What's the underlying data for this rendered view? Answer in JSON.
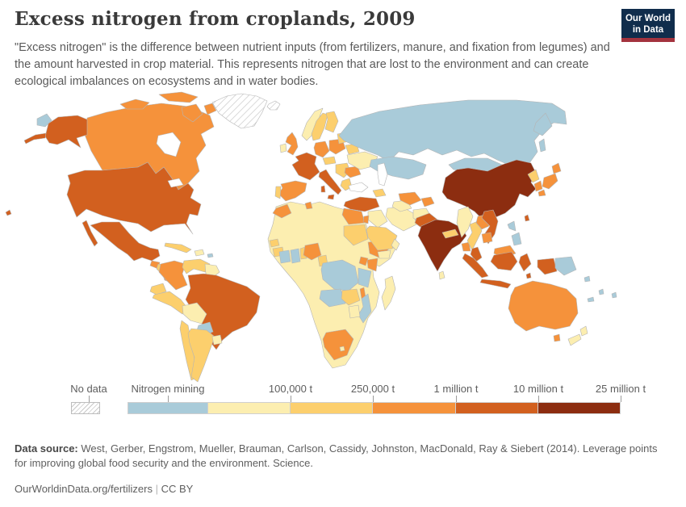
{
  "header": {
    "title": "Excess nitrogen from croplands, 2009",
    "subtitle": "\"Excess nitrogen\" is the difference between nutrient inputs (from fertilizers, manure, and fixation from legumes) and the amount harvested in crop material. This represents nitrogen that are lost to the environment and can create ecological imbalances on ecosystems and in water bodies.",
    "logo": {
      "line1": "Our World",
      "line2": "in Data",
      "bg": "#102d4c",
      "accent": "#a3333e"
    }
  },
  "legend": {
    "no_data_label": "No data",
    "mining_label": "Nitrogen mining",
    "tick_labels": [
      "100,000 t",
      "250,000 t",
      "1 million t",
      "10 million t",
      "25 million t"
    ]
  },
  "footer": {
    "source_label": "Data source:",
    "source_text": " West, Gerber, Engstrom, Mueller, Brauman, Carlson, Cassidy, Johnston, MacDonald, Ray & Siebert (2014). Leverage points for improving global food security and the environment. Science.",
    "link_text": "OurWorldinData.org/fertilizers",
    "separator": "|",
    "license_text": "CC BY"
  },
  "chart_data": {
    "type": "choropleth-map",
    "title": "Excess nitrogen from croplands, 2009",
    "unit": "tonnes of excess nitrogen",
    "ocean_color": "#ffffff",
    "border_color": "#b5b5b5",
    "scale_bands": [
      {
        "key": "mining",
        "label": "Nitrogen mining",
        "color": "#a9cbd9"
      },
      {
        "key": "b1",
        "label": "up to 100,000 t",
        "color": "#fceeb0"
      },
      {
        "key": "b2",
        "label": "100,000 t – 250,000 t",
        "color": "#fccf6d"
      },
      {
        "key": "b3",
        "label": "250,000 t – 1 million t",
        "color": "#f5923b"
      },
      {
        "key": "b4",
        "label": "1 million t – 10 million t",
        "color": "#d2601f"
      },
      {
        "key": "b5",
        "label": "10 million t – 25 million t",
        "color": "#8c2d10"
      },
      {
        "key": "nodata",
        "label": "No data",
        "color": "hatch"
      }
    ],
    "countries": [
      {
        "id": "greenland",
        "name": "Greenland",
        "band": "nodata"
      },
      {
        "id": "iceland",
        "name": "Iceland",
        "band": "nodata"
      },
      {
        "id": "canada",
        "name": "Canada",
        "band": "b3"
      },
      {
        "id": "united-states",
        "name": "United States",
        "band": "b4"
      },
      {
        "id": "chukotka",
        "name": "Russia (Far East)",
        "band": "mining"
      },
      {
        "id": "mexico",
        "name": "Mexico",
        "band": "b4"
      },
      {
        "id": "guatemala",
        "name": "Guatemala",
        "band": "b3"
      },
      {
        "id": "honduras-nicaragua",
        "name": "Honduras & Nicaragua",
        "band": "b2"
      },
      {
        "id": "costa-rica-panama",
        "name": "Costa Rica & Panama",
        "band": "b3"
      },
      {
        "id": "cuba",
        "name": "Cuba",
        "band": "b2"
      },
      {
        "id": "hispaniola",
        "name": "Haiti & Dominican Republic",
        "band": "b1"
      },
      {
        "id": "puerto-rico",
        "name": "Puerto Rico",
        "band": "mining"
      },
      {
        "id": "colombia",
        "name": "Colombia",
        "band": "b3"
      },
      {
        "id": "venezuela",
        "name": "Venezuela",
        "band": "b2"
      },
      {
        "id": "guyana",
        "name": "Guyana & Suriname",
        "band": "b1"
      },
      {
        "id": "ecuador",
        "name": "Ecuador",
        "band": "b2"
      },
      {
        "id": "peru",
        "name": "Peru",
        "band": "b2"
      },
      {
        "id": "brazil",
        "name": "Brazil",
        "band": "b4"
      },
      {
        "id": "bolivia",
        "name": "Bolivia",
        "band": "b1"
      },
      {
        "id": "paraguay",
        "name": "Paraguay",
        "band": "mining"
      },
      {
        "id": "chile",
        "name": "Chile",
        "band": "b2"
      },
      {
        "id": "argentina",
        "name": "Argentina",
        "band": "b2"
      },
      {
        "id": "uruguay",
        "name": "Uruguay",
        "band": "b1"
      },
      {
        "id": "africa-other",
        "name": "Africa (other countries)",
        "band": "b1"
      },
      {
        "id": "morocco",
        "name": "Morocco",
        "band": "b3"
      },
      {
        "id": "tunisia",
        "name": "Tunisia",
        "band": "b3"
      },
      {
        "id": "egypt",
        "name": "Egypt",
        "band": "b3"
      },
      {
        "id": "sudan",
        "name": "Sudan",
        "band": "b2"
      },
      {
        "id": "senegal",
        "name": "Senegal",
        "band": "b2"
      },
      {
        "id": "guinea",
        "name": "Guinea",
        "band": "b2"
      },
      {
        "id": "cote-divoire",
        "name": "Cote d'Ivoire",
        "band": "mining"
      },
      {
        "id": "ghana",
        "name": "Ghana",
        "band": "mining"
      },
      {
        "id": "togo-benin",
        "name": "Togo & Benin",
        "band": "b2"
      },
      {
        "id": "nigeria",
        "name": "Nigeria",
        "band": "b3"
      },
      {
        "id": "cameroon",
        "name": "Cameroon",
        "band": "b2"
      },
      {
        "id": "ethiopia",
        "name": "Ethiopia",
        "band": "b3"
      },
      {
        "id": "kenya",
        "name": "Kenya",
        "band": "b3"
      },
      {
        "id": "uganda",
        "name": "Uganda",
        "band": "b3"
      },
      {
        "id": "drc",
        "name": "Democratic Republic of Congo",
        "band": "mining"
      },
      {
        "id": "tanzania",
        "name": "Tanzania",
        "band": "mining"
      },
      {
        "id": "angola",
        "name": "Angola",
        "band": "mining"
      },
      {
        "id": "zambia",
        "name": "Zambia",
        "band": "b2"
      },
      {
        "id": "malawi",
        "name": "Malawi",
        "band": "b3"
      },
      {
        "id": "mozambique",
        "name": "Mozambique",
        "band": "mining"
      },
      {
        "id": "zimbabwe",
        "name": "Zimbabwe",
        "band": "b1"
      },
      {
        "id": "south-africa",
        "name": "South Africa",
        "band": "b3"
      },
      {
        "id": "lesotho",
        "name": "Lesotho",
        "band": "b1"
      },
      {
        "id": "madagascar",
        "name": "Madagascar",
        "band": "b1"
      },
      {
        "id": "norway",
        "name": "Norway",
        "band": "b1"
      },
      {
        "id": "sweden",
        "name": "Sweden",
        "band": "b2"
      },
      {
        "id": "finland",
        "name": "Finland",
        "band": "b2"
      },
      {
        "id": "denmark",
        "name": "Denmark",
        "band": "b3"
      },
      {
        "id": "united-kingdom",
        "name": "United Kingdom",
        "band": "b3"
      },
      {
        "id": "ireland",
        "name": "Ireland",
        "band": "b1"
      },
      {
        "id": "france",
        "name": "France",
        "band": "b4"
      },
      {
        "id": "spain",
        "name": "Spain",
        "band": "b3"
      },
      {
        "id": "portugal",
        "name": "Portugal",
        "band": "b2"
      },
      {
        "id": "germany",
        "name": "Germany",
        "band": "b3"
      },
      {
        "id": "poland",
        "name": "Poland",
        "band": "b3"
      },
      {
        "id": "czechia-austria",
        "name": "Austria & Czechia",
        "band": "b2"
      },
      {
        "id": "italy",
        "name": "Italy",
        "band": "b4"
      },
      {
        "id": "balkans",
        "name": "Balkans",
        "band": "b2"
      },
      {
        "id": "greece",
        "name": "Greece",
        "band": "b2"
      },
      {
        "id": "romania",
        "name": "Romania",
        "band": "b3"
      },
      {
        "id": "ukraine",
        "name": "Ukraine",
        "band": "b1"
      },
      {
        "id": "belarus",
        "name": "Belarus",
        "band": "b2"
      },
      {
        "id": "baltics",
        "name": "Baltic states",
        "band": "b2"
      },
      {
        "id": "russia",
        "name": "Russia",
        "band": "mining"
      },
      {
        "id": "kazakhstan",
        "name": "Kazakhstan",
        "band": "mining"
      },
      {
        "id": "mongolia",
        "name": "Mongolia",
        "band": "mining"
      },
      {
        "id": "turkey",
        "name": "Turkey",
        "band": "b4"
      },
      {
        "id": "caucasus",
        "name": "Caucasus",
        "band": "b2"
      },
      {
        "id": "syria-iraq",
        "name": "Syria & Iraq",
        "band": "b1"
      },
      {
        "id": "israel-jordan",
        "name": "Israel & Jordan",
        "band": "b3"
      },
      {
        "id": "iran",
        "name": "Iran",
        "band": "b1"
      },
      {
        "id": "afghanistan",
        "name": "Afghanistan",
        "band": "b1"
      },
      {
        "id": "turkmenistan",
        "name": "Turkmenistan",
        "band": "b1"
      },
      {
        "id": "uzbekistan",
        "name": "Uzbekistan",
        "band": "b3"
      },
      {
        "id": "kyrgyz-tajik",
        "name": "Kyrgyzstan & Tajikistan",
        "band": "b3"
      },
      {
        "id": "saudi-arabia",
        "name": "Saudi Arabia",
        "band": "b2"
      },
      {
        "id": "yemen",
        "name": "Yemen",
        "band": "b1"
      },
      {
        "id": "oman",
        "name": "Oman",
        "band": "b1"
      },
      {
        "id": "pakistan",
        "name": "Pakistan",
        "band": "b4"
      },
      {
        "id": "india",
        "name": "India",
        "band": "b5"
      },
      {
        "id": "nepal",
        "name": "Nepal",
        "band": "b2"
      },
      {
        "id": "bangladesh",
        "name": "Bangladesh",
        "band": "b3"
      },
      {
        "id": "sri-lanka",
        "name": "Sri Lanka",
        "band": "b1"
      },
      {
        "id": "china",
        "name": "China",
        "band": "b5"
      },
      {
        "id": "taiwan",
        "name": "Taiwan",
        "band": "b4"
      },
      {
        "id": "north-korea",
        "name": "North Korea",
        "band": "b2"
      },
      {
        "id": "south-korea",
        "name": "South Korea",
        "band": "b3"
      },
      {
        "id": "japan",
        "name": "Japan",
        "band": "b3"
      },
      {
        "id": "myanmar",
        "name": "Myanmar",
        "band": "b1"
      },
      {
        "id": "thailand",
        "name": "Thailand",
        "band": "b2"
      },
      {
        "id": "laos",
        "name": "Laos",
        "band": "b3"
      },
      {
        "id": "vietnam",
        "name": "Vietnam",
        "band": "b4"
      },
      {
        "id": "cambodia",
        "name": "Cambodia",
        "band": "b3"
      },
      {
        "id": "malaysia-peninsular",
        "name": "Malaysia (Peninsular)",
        "band": "b4"
      },
      {
        "id": "malaysia-borneo",
        "name": "Malaysia (Borneo)",
        "band": "b3"
      },
      {
        "id": "philippines",
        "name": "Philippines",
        "band": "mining"
      },
      {
        "id": "indonesia",
        "name": "Indonesia",
        "band": "b4"
      },
      {
        "id": "papua-new-guinea",
        "name": "Papua New Guinea",
        "band": "mining"
      },
      {
        "id": "solomon-islands",
        "name": "Solomon Islands",
        "band": "mining"
      },
      {
        "id": "vanuatu-fiji",
        "name": "Vanuatu & Fiji",
        "band": "mining"
      },
      {
        "id": "new-caledonia",
        "name": "New Caledonia",
        "band": "mining"
      },
      {
        "id": "australia",
        "name": "Australia",
        "band": "b3"
      },
      {
        "id": "new-zealand",
        "name": "New Zealand",
        "band": "b1"
      }
    ]
  }
}
